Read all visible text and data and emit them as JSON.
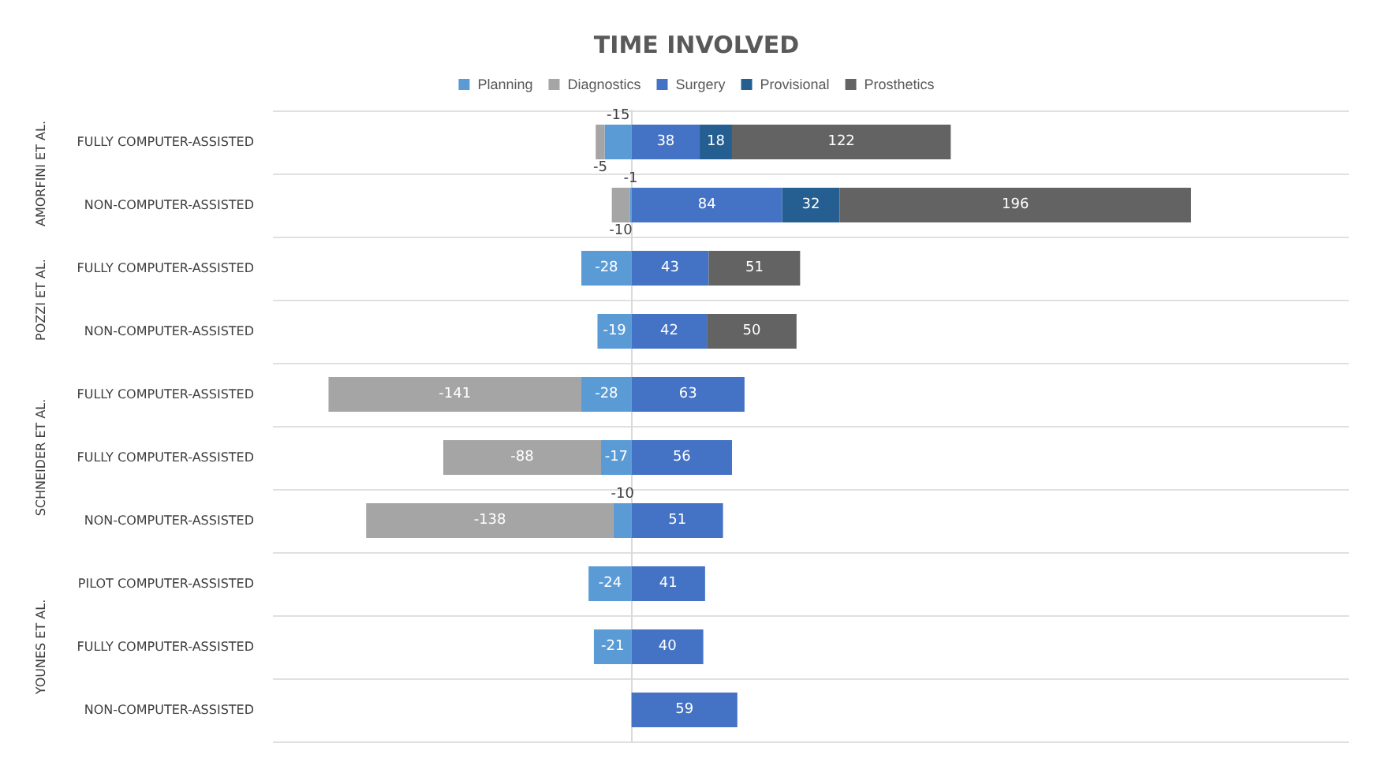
{
  "chart_data": {
    "type": "bar",
    "orientation": "horizontal",
    "stacked": true,
    "title": "TIME INVOLVED",
    "legend": "top",
    "grid": "y",
    "data_labels": true,
    "categories": [
      "FULLY COMPUTER-ASSISTED",
      "NON-COMPUTER-ASSISTED",
      "FULLY COMPUTER-ASSISTED",
      "NON-COMPUTER-ASSISTED",
      "FULLY COMPUTER-ASSISTED",
      "FULLY COMPUTER-ASSISTED",
      "NON-COMPUTER-ASSISTED",
      "PILOT COMPUTER-ASSISTED",
      "FULLY COMPUTER-ASSISTED",
      "NON-COMPUTER-ASSISTED"
    ],
    "annotations": [
      "AMORFINI ET AL.",
      "POZZI ET AL.",
      "SCHNEIDER ET AL.",
      "YOUNES ET AL."
    ],
    "series": [
      {
        "name": "Planning",
        "color": "#5b9bd5",
        "values": [
          -15,
          -1,
          -28,
          -19,
          -28,
          -17,
          -10,
          -24,
          -21,
          null
        ]
      },
      {
        "name": "Diagnostics",
        "color": "#a5a5a5",
        "values": [
          -5,
          -10,
          null,
          null,
          -141,
          -88,
          -138,
          null,
          null,
          null
        ]
      },
      {
        "name": "Surgery",
        "color": "#4472c4",
        "values": [
          38,
          84,
          43,
          42,
          63,
          56,
          51,
          41,
          40,
          59
        ]
      },
      {
        "name": "Provisional",
        "color": "#255e91",
        "values": [
          18,
          32,
          null,
          null,
          null,
          null,
          null,
          null,
          null,
          null
        ]
      },
      {
        "name": "Prosthetics",
        "color": "#636363",
        "values": [
          122,
          196,
          51,
          50,
          null,
          null,
          null,
          null,
          null,
          null
        ]
      }
    ]
  }
}
